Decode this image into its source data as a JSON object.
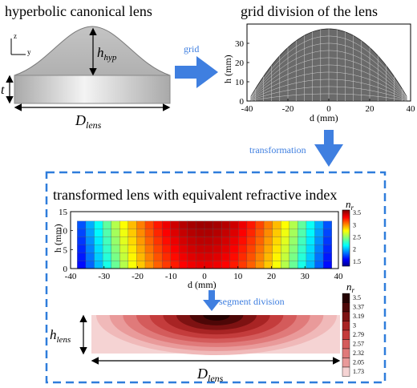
{
  "canonical_lens": {
    "title": "hyperbolic canonical lens",
    "axis_z": "z",
    "axis_y": "y",
    "h_label": "h",
    "h_sub": "hyp",
    "t_label": "t",
    "d_label": "D",
    "d_sub": "lens"
  },
  "arrows": {
    "grid_label": "grid",
    "transformation_label": "transformation",
    "segment_label": "segment division"
  },
  "grid_plot": {
    "title": "grid division of the lens",
    "xlabel": "d (mm)",
    "ylabel": "h (mm)",
    "x_ticks": [
      "-40",
      "-20",
      "0",
      "20",
      "40"
    ],
    "y_ticks": [
      "0",
      "10",
      "20",
      "30"
    ]
  },
  "transformed_panel": {
    "title": "transformed lens with equivalent refractive index",
    "xlabel": "d (mm)",
    "ylabel": "h (mm)",
    "x_ticks": [
      "-40",
      "-30",
      "-20",
      "-10",
      "0",
      "10",
      "20",
      "30",
      "40"
    ],
    "y_ticks": [
      "0",
      "5",
      "10",
      "15"
    ],
    "colorbar_label": "n",
    "colorbar_sub": "r",
    "colorbar_ticks": [
      "3.5",
      "3",
      "2.5",
      "2",
      "1.5"
    ]
  },
  "segment_lens": {
    "h_label": "h",
    "h_sub": "lens",
    "d_label": "D",
    "d_sub": "lens",
    "colorbar_label": "n",
    "colorbar_sub": "r",
    "colorbar_ticks": [
      "3.5",
      "3.37",
      "3.19",
      "3",
      "2.79",
      "2.57",
      "2.32",
      "2.05",
      "1.73"
    ]
  },
  "colors": {
    "accent_arrow": "#3f7fe0",
    "dashed_border": "#2f7ddb",
    "lens_fill": "#b9b9b9",
    "grid_fill": "#6a6a6a"
  }
}
